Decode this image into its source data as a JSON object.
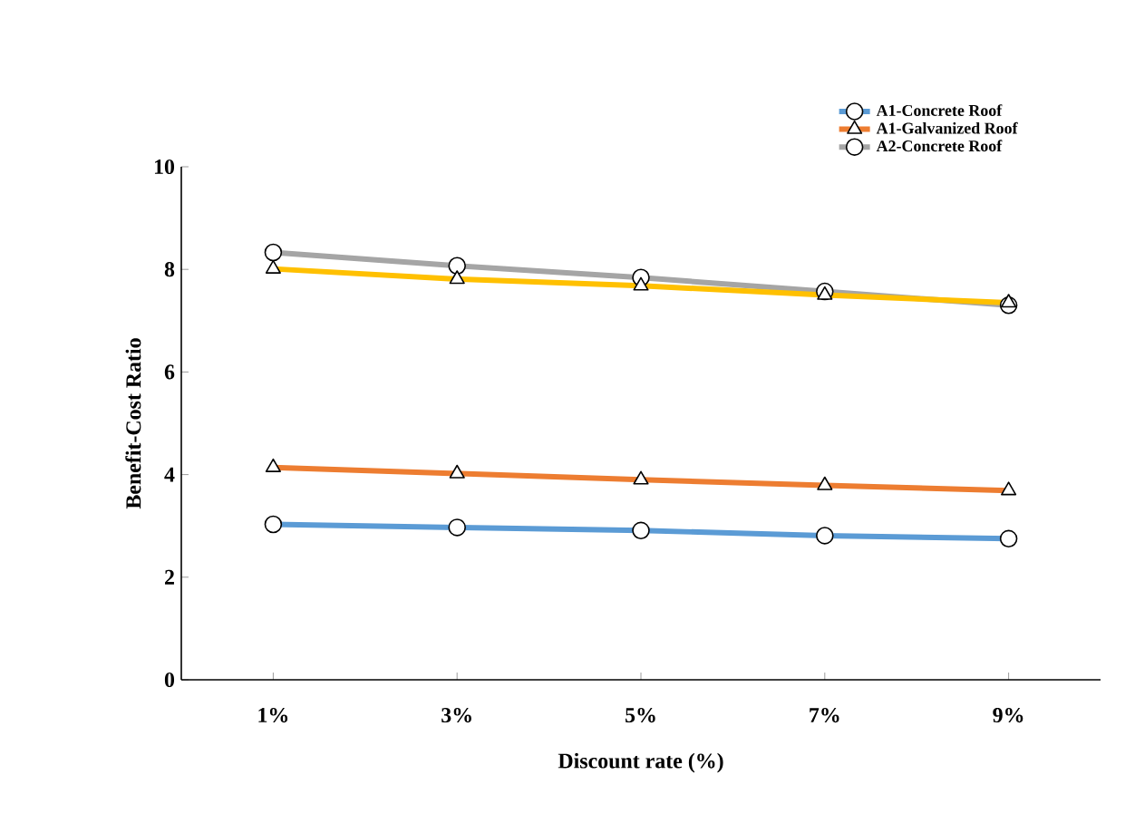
{
  "chart_data": {
    "type": "line",
    "xlabel": "Discount rate (%)",
    "ylabel": "Benefit-Cost Ratio",
    "categories": [
      "1%",
      "3%",
      "5%",
      "7%",
      "9%"
    ],
    "series": [
      {
        "name": "A1-Concrete Roof",
        "color": "#5b9bd5",
        "marker": "circle",
        "values": [
          3.03,
          2.97,
          2.91,
          2.81,
          2.75
        ]
      },
      {
        "name": "A1-Galvanized Roof",
        "color": "#ed7d31",
        "marker": "triangle",
        "values": [
          4.14,
          4.02,
          3.9,
          3.79,
          3.69
        ]
      },
      {
        "name": "A2-Concrete Roof",
        "color": "#a5a5a5",
        "marker": "circle",
        "values": [
          8.33,
          8.07,
          7.84,
          7.57,
          7.3
        ]
      },
      {
        "color": "#ffc000",
        "marker": "triangle",
        "values": [
          8.01,
          7.81,
          7.68,
          7.5,
          7.35
        ]
      }
    ],
    "ylim": [
      0,
      10
    ],
    "yticks": [
      0,
      2,
      4,
      6,
      8,
      10
    ],
    "grid": false,
    "legend": "top right",
    "line_style": "solid"
  }
}
